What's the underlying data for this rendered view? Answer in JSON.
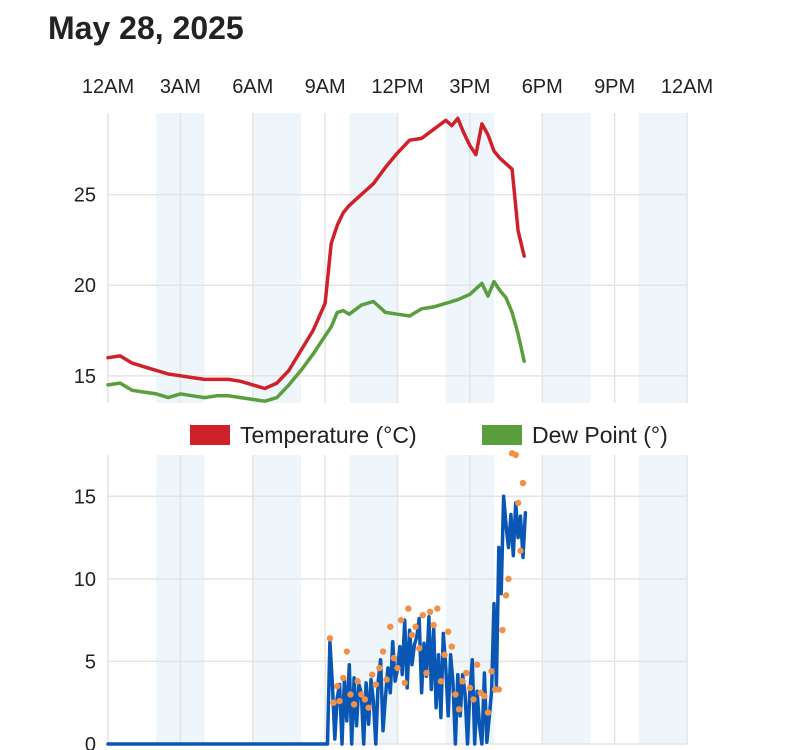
{
  "header": {
    "date": "May 28, 2025"
  },
  "colors": {
    "temperature": "#d0212a",
    "dew_point": "#5a9e3e",
    "line2": "#0a56b5",
    "dots": "#f0914a",
    "band": "#eef5fb",
    "grid": "#e4e4e4"
  },
  "chart_data": [
    {
      "type": "line",
      "title": "",
      "x_tick_labels": [
        "12AM",
        "3AM",
        "6AM",
        "9AM",
        "12PM",
        "3PM",
        "6PM",
        "9PM",
        "12AM"
      ],
      "xlim": [
        0,
        24
      ],
      "ylim": [
        13.5,
        29.5
      ],
      "y_ticks": [
        15,
        20,
        25
      ],
      "grid": true,
      "legend_placement": "bottom-right",
      "series": [
        {
          "name": "Temperature (°C)",
          "x": [
            0,
            0.5,
            1,
            1.5,
            2,
            2.5,
            3,
            3.5,
            4,
            4.5,
            5,
            5.5,
            6,
            6.5,
            7,
            7.5,
            8,
            8.5,
            9,
            9.25,
            9.5,
            9.75,
            10,
            10.5,
            11,
            11.5,
            12,
            12.5,
            13,
            13.5,
            14,
            14.25,
            14.5,
            14.75,
            15,
            15.25,
            15.5,
            15.75,
            16,
            16.25,
            16.5,
            16.75,
            17,
            17.25
          ],
          "y": [
            16,
            16.1,
            15.7,
            15.5,
            15.3,
            15.1,
            15,
            14.9,
            14.8,
            14.8,
            14.8,
            14.7,
            14.5,
            14.3,
            14.6,
            15.3,
            16.4,
            17.5,
            19,
            22.3,
            23.3,
            24,
            24.4,
            25,
            25.6,
            26.5,
            27.3,
            28,
            28.1,
            28.6,
            29.1,
            28.8,
            29.2,
            28.4,
            27.7,
            27.2,
            28.9,
            28.3,
            27.4,
            27,
            26.7,
            26.4,
            23,
            21.6
          ]
        },
        {
          "name": "Dew Point (°)",
          "x": [
            0,
            0.5,
            1,
            1.5,
            2,
            2.5,
            3,
            3.5,
            4,
            4.5,
            5,
            5.5,
            6,
            6.5,
            7,
            7.5,
            8,
            8.5,
            9,
            9.25,
            9.5,
            9.75,
            10,
            10.5,
            11,
            11.5,
            12,
            12.5,
            13,
            13.5,
            14,
            14.5,
            15,
            15.25,
            15.5,
            15.75,
            16,
            16.25,
            16.5,
            16.75,
            17,
            17.25
          ],
          "y": [
            14.5,
            14.6,
            14.2,
            14.1,
            14,
            13.8,
            14,
            13.9,
            13.8,
            13.9,
            13.9,
            13.8,
            13.7,
            13.6,
            13.8,
            14.5,
            15.3,
            16.2,
            17.2,
            17.7,
            18.5,
            18.6,
            18.4,
            18.9,
            19.1,
            18.5,
            18.4,
            18.3,
            18.7,
            18.8,
            19,
            19.2,
            19.5,
            19.8,
            20.1,
            19.4,
            20.2,
            19.7,
            19.3,
            18.5,
            17.3,
            15.8
          ]
        }
      ]
    },
    {
      "type": "line",
      "title": "",
      "xlim": [
        0,
        24
      ],
      "ylim": [
        0,
        17.5
      ],
      "y_ticks": [
        0,
        5,
        10,
        15
      ],
      "grid": true,
      "series": [
        {
          "name": "",
          "x": [
            0,
            3,
            6,
            9,
            9.1,
            9.2,
            9.3,
            9.4,
            9.5,
            9.6,
            9.7,
            9.8,
            9.9,
            10,
            10.1,
            10.2,
            10.3,
            10.4,
            10.5,
            10.6,
            10.7,
            10.8,
            10.9,
            11,
            11.1,
            11.2,
            11.3,
            11.4,
            11.5,
            11.6,
            11.7,
            11.8,
            11.9,
            12,
            12.1,
            12.2,
            12.3,
            12.4,
            12.5,
            12.6,
            12.7,
            12.8,
            12.9,
            13,
            13.1,
            13.2,
            13.3,
            13.4,
            13.5,
            13.6,
            13.7,
            13.8,
            13.9,
            14,
            14.1,
            14.2,
            14.3,
            14.4,
            14.5,
            14.6,
            14.7,
            14.8,
            14.9,
            15,
            15.1,
            15.2,
            15.3,
            15.4,
            15.5,
            15.6,
            15.7,
            15.8,
            15.9,
            16,
            16.1,
            16.2,
            16.3,
            16.4,
            16.5,
            16.6,
            16.7,
            16.8,
            16.9,
            17,
            17.1,
            17.2,
            17.3
          ],
          "y": [
            0,
            0,
            0,
            0,
            0,
            6.2,
            3.6,
            0.3,
            2.8,
            3.6,
            0,
            3.9,
            1.4,
            4.8,
            0,
            4,
            1.1,
            3.6,
            3.1,
            0,
            3.7,
            1.2,
            3.9,
            2.6,
            0,
            3.8,
            5.1,
            0.8,
            2.8,
            4.6,
            3.1,
            6.2,
            3.8,
            4.5,
            5.9,
            4.2,
            7.5,
            3.4,
            6.9,
            4.8,
            6,
            6.5,
            7.6,
            3.1,
            6.1,
            4.1,
            7.7,
            3.3,
            7,
            2.2,
            5.4,
            1.6,
            6.7,
            4.6,
            1.7,
            5.4,
            3.7,
            0,
            4.2,
            1.7,
            4.2,
            3,
            0,
            3.2,
            5.1,
            0,
            3.2,
            1.1,
            0,
            4.3,
            0.1,
            1.6,
            3.2,
            8.5,
            3.5,
            11.9,
            9.1,
            15,
            13.2,
            11.9,
            13.9,
            11.4,
            14.6,
            12.5,
            13.8,
            11.3,
            14
          ]
        },
        {
          "name": "",
          "x": [
            9.2,
            9.35,
            9.5,
            9.6,
            9.75,
            9.9,
            10.05,
            10.2,
            10.35,
            10.5,
            10.65,
            10.8,
            10.95,
            11.1,
            11.25,
            11.4,
            11.55,
            11.7,
            11.85,
            12,
            12.15,
            12.3,
            12.45,
            12.6,
            12.75,
            12.9,
            13.05,
            13.2,
            13.35,
            13.5,
            13.65,
            13.8,
            13.95,
            14.1,
            14.25,
            14.4,
            14.55,
            14.7,
            14.85,
            15,
            15.15,
            15.3,
            15.45,
            15.6,
            15.75,
            15.9,
            16.05,
            16.2,
            16.35,
            16.5,
            16.6,
            16.75,
            16.9,
            17,
            17.1,
            17.2
          ],
          "y": [
            6.4,
            2.5,
            3.5,
            2.6,
            4,
            5.6,
            3,
            2.4,
            3.8,
            3,
            2.7,
            2.2,
            4.2,
            3.6,
            4.6,
            5.6,
            3.9,
            7.1,
            5.2,
            4.6,
            7.5,
            3.7,
            8.2,
            6.6,
            7.1,
            5.8,
            7.8,
            4.3,
            8,
            7.2,
            8.2,
            3.8,
            5.4,
            6.8,
            5.9,
            3,
            2.1,
            3.8,
            4.3,
            3.4,
            2.7,
            4.8,
            3.1,
            2.9,
            1.9,
            4.4,
            3.3,
            3.3,
            6.9,
            9,
            10,
            17.6,
            17.5,
            14.6,
            11.7,
            15.8
          ]
        }
      ]
    }
  ],
  "legend": {
    "temperature_label": "Temperature (°C)",
    "dew_point_label": "Dew Point (°)"
  }
}
